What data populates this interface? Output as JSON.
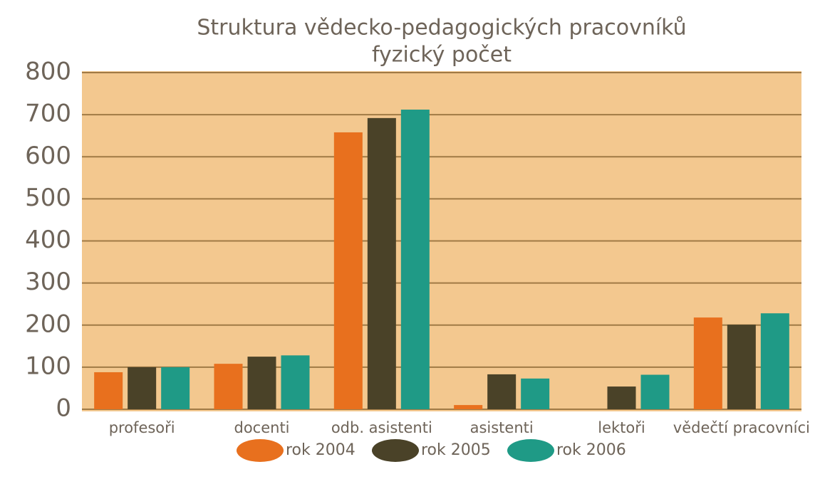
{
  "chart_data": {
    "type": "bar",
    "title": "Struktura vědecko-pedagogických pracovníků",
    "subtitle": "fyzický počet",
    "categories": [
      "profesoři",
      "docenti",
      "odb. asistenti",
      "asistenti",
      "lektoři",
      "vědečtí pracovníci"
    ],
    "series": [
      {
        "name": "rok 2004",
        "color": "#e8701e",
        "values": [
          88,
          108,
          658,
          10,
          null,
          218
        ]
      },
      {
        "name": "rok 2005",
        "color": "#4a4228",
        "values": [
          100,
          125,
          692,
          83,
          54,
          201
        ]
      },
      {
        "name": "rok 2006",
        "color": "#1f9a86",
        "values": [
          100,
          128,
          712,
          73,
          82,
          228
        ]
      }
    ],
    "ylim": [
      0,
      800
    ],
    "yticks": [
      0,
      100,
      200,
      300,
      400,
      500,
      600,
      700,
      800
    ],
    "grid": true
  }
}
